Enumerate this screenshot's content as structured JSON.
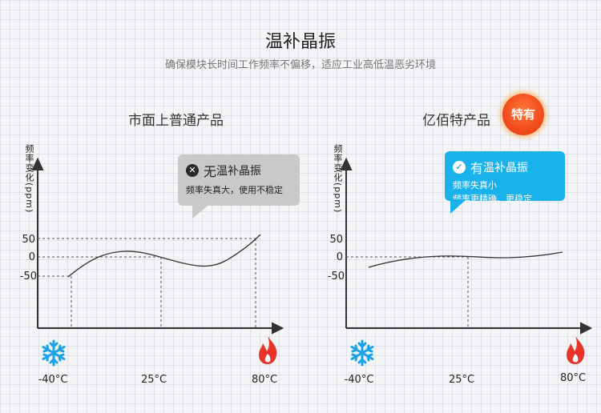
{
  "header": {
    "title": "温补晶振",
    "subtitle": "确保模块长时间工作频率不偏移，适应工业高低温恶劣环境"
  },
  "left_panel": {
    "title": "市面上普通产品",
    "y_axis_label": "频率变化(ppm)",
    "y_ticks": [
      "50",
      "0",
      "-50"
    ],
    "x_ticks": [
      "-40°C",
      "25°C",
      "80°C"
    ],
    "callout": {
      "icon": "x-circle-icon",
      "prefix": "无",
      "name": "温补晶振",
      "line1": "频率失真大，使用不稳定"
    }
  },
  "right_panel": {
    "title": "亿佰特产品",
    "badge": "特有",
    "y_axis_label": "频率变化(ppm)",
    "y_ticks": [
      "50",
      "0",
      "-50"
    ],
    "x_ticks": [
      "-40°C",
      "25°C",
      "80°C"
    ],
    "callout": {
      "icon": "check-circle-icon",
      "prefix": "有",
      "name": "温补晶振",
      "line1": "频率失真小",
      "line2": "频率更精确、更稳定"
    }
  },
  "colors": {
    "snowflake": "#1aa3e8",
    "flame": "#e8342a",
    "callout_gray": "#c9c9c9",
    "callout_blue": "#1ab2ea",
    "badge": "#f24a1c"
  },
  "chart_data": [
    {
      "type": "line",
      "x": [
        -40,
        -20,
        0,
        25,
        40,
        60,
        80
      ],
      "y": [
        -50,
        -10,
        10,
        0,
        -15,
        5,
        55
      ],
      "xticks": [
        "-40°C",
        "25°C",
        "80°C"
      ],
      "yticks": [
        50,
        0,
        -50
      ],
      "ylabel": "频率变化(ppm)"
    },
    {
      "type": "line",
      "x": [
        -40,
        -20,
        0,
        25,
        40,
        60,
        80
      ],
      "y": [
        -25,
        -10,
        -2,
        0,
        -2,
        2,
        10
      ],
      "xticks": [
        "-40°C",
        "25°C",
        "80°C"
      ],
      "yticks": [
        50,
        0,
        -50
      ],
      "ylabel": "频率变化(ppm)"
    }
  ]
}
